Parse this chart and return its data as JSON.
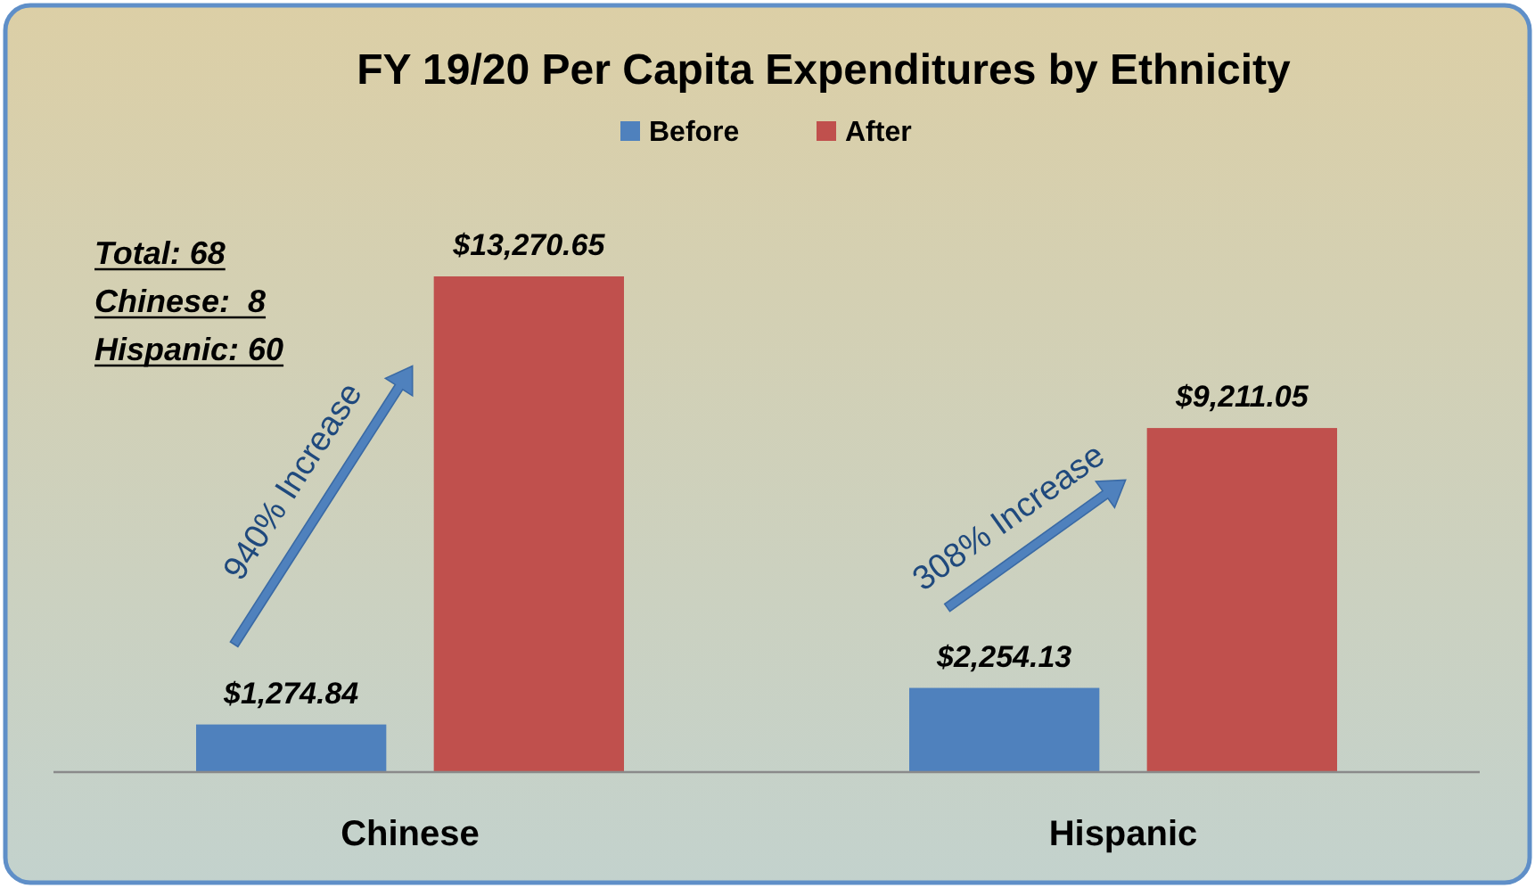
{
  "chart_data": {
    "type": "bar",
    "title": "FY 19/20 Per Capita Expenditures by Ethnicity",
    "categories": [
      "Chinese",
      "Hispanic"
    ],
    "series": [
      {
        "name": "Before",
        "color": "#4f81bd",
        "values": [
          1274.84,
          2254.13
        ],
        "value_labels": [
          "$1,274.84",
          "$2,254.13"
        ]
      },
      {
        "name": "After",
        "color": "#c0504d",
        "values": [
          13270.65,
          9211.05
        ],
        "value_labels": [
          "$13,270.65",
          "$9,211.05"
        ]
      }
    ],
    "legend": "top",
    "annotations": [
      "Total: 68",
      "Chinese:  8",
      "Hispanic: 60",
      "940% Increase",
      "308% Increase"
    ]
  }
}
